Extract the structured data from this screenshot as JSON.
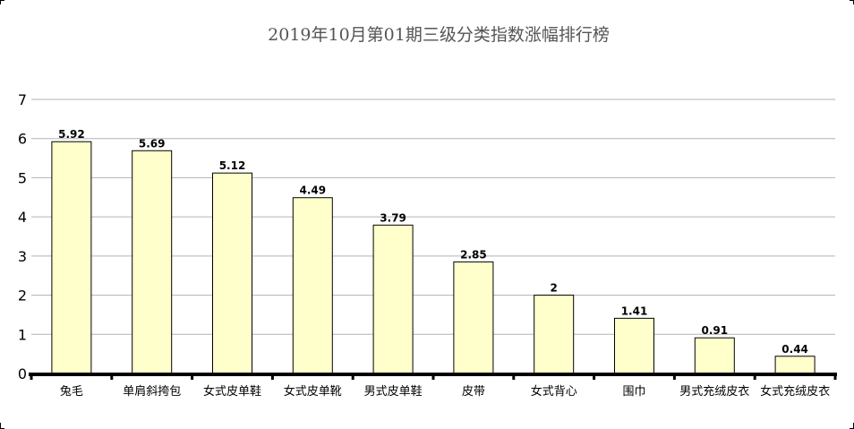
{
  "chart_data": {
    "type": "bar",
    "title": "2019年10月第01期三级分类指数涨幅排行榜",
    "xlabel": "",
    "ylabel": "",
    "categories": [
      "兔毛",
      "单肩斜挎包",
      "女式皮单鞋",
      "女式皮单靴",
      "男式皮单鞋",
      "皮带",
      "女式背心",
      "围巾",
      "男式充绒皮衣",
      "女式充绒皮衣"
    ],
    "values": [
      5.92,
      5.69,
      5.12,
      4.49,
      3.79,
      2.85,
      2,
      1.41,
      0.91,
      0.44
    ],
    "value_labels": [
      "5.92",
      "5.69",
      "5.12",
      "4.49",
      "3.79",
      "2.85",
      "2",
      "1.41",
      "0.91",
      "0.44"
    ],
    "y_ticks": [
      "0",
      "1",
      "2",
      "3",
      "4",
      "5",
      "6",
      "7"
    ],
    "ylim": [
      0,
      7
    ],
    "grid": true,
    "legend": "none",
    "colors": {
      "bar_fill": "#ffffcc",
      "bar_stroke": "#000000",
      "grid": "#b3b3b3",
      "title": "#555555"
    }
  }
}
